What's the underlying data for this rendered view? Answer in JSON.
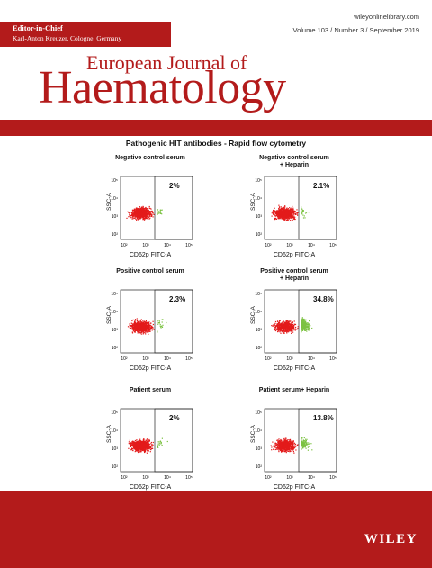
{
  "header": {
    "editor_title": "Editor-in-Chief",
    "editor_name": "Karl-Anton Kreuzer, Cologne, Germany",
    "website": "wileyonlinelibrary.com",
    "issue": "Volume 103  /  Number 3  /  September 2019"
  },
  "journal": {
    "line1": "European Journal of",
    "line2": "Haematology"
  },
  "figure": {
    "title": "Pathogenic HIT antibodies - Rapid flow cytometry",
    "x_axis_label": "CD62p FITC-A",
    "y_axis_label": "SSC-A",
    "x_ticks": [
      "10²",
      "10³",
      "10⁴",
      "10⁵"
    ],
    "y_ticks": [
      "10²",
      "10³",
      "10⁴",
      "10⁵"
    ],
    "colors": {
      "negative_events": "#e31b1b",
      "positive_events": "#7cc242"
    },
    "panels": [
      {
        "title": "Negative control serum",
        "title2": "",
        "percent": "2%",
        "positive_fraction": 0.02
      },
      {
        "title": "Negative control serum",
        "title2": "+ Heparin",
        "percent": "2.1%",
        "positive_fraction": 0.021
      },
      {
        "title": "Positive control serum",
        "title2": "",
        "percent": "2.3%",
        "positive_fraction": 0.023
      },
      {
        "title": "Positive control serum",
        "title2": "+ Heparin",
        "percent": "34.8%",
        "positive_fraction": 0.348
      },
      {
        "title": "Patient serum",
        "title2": "",
        "percent": "2%",
        "positive_fraction": 0.02
      },
      {
        "title": "Patient serum+ Heparin",
        "title2": "",
        "percent": "13.8%",
        "positive_fraction": 0.138
      }
    ]
  },
  "publisher": "WILEY",
  "colors": {
    "brand_red": "#b31b1b"
  }
}
